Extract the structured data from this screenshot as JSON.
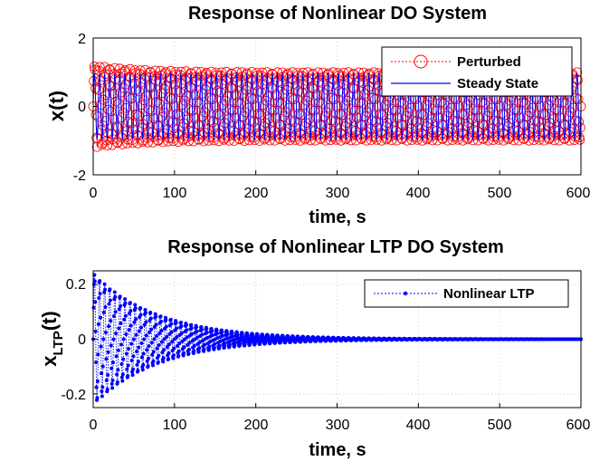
{
  "chart_data": [
    {
      "type": "line",
      "title": "Response of Nonlinear DO System",
      "xlabel": "time, s",
      "ylabel": "x(t)",
      "xlim": [
        0,
        600
      ],
      "ylim": [
        -2,
        2
      ],
      "xticks": [
        "0",
        "100",
        "200",
        "300",
        "400",
        "500",
        "600"
      ],
      "yticks": [
        "2",
        "0",
        "-2"
      ],
      "grid": true,
      "legend_position": "top-right",
      "series": [
        {
          "name": "Perturbed",
          "color": "#ff0000",
          "style": "dotted line with circle markers",
          "description_values": {
            "amplitude": 1.0,
            "initial_amplitude": 1.2,
            "oscillations_count": 96,
            "x_start": 0,
            "x_end": 600
          }
        },
        {
          "name": "Steady State",
          "color": "#0000ff",
          "style": "solid line",
          "description_values": {
            "amplitude": 0.95,
            "oscillations_count": 96,
            "x_start": 0,
            "x_end": 600
          }
        }
      ]
    },
    {
      "type": "line",
      "title": "Response of Nonlinear LTP DO System",
      "xlabel": "time, s",
      "ylabel_main": "x",
      "ylabel_sub": "LTP",
      "ylabel_suffix": "(t)",
      "xlim": [
        0,
        600
      ],
      "ylim": [
        -0.25,
        0.25
      ],
      "xticks": [
        "0",
        "100",
        "200",
        "300",
        "400",
        "500",
        "600"
      ],
      "yticks": [
        "0.2",
        "0",
        "-0.2"
      ],
      "grid": true,
      "legend_position": "top-right",
      "series": [
        {
          "name": "Nonlinear LTP",
          "color": "#0000ff",
          "style": "dotted line with dot markers",
          "description_values": {
            "initial_amplitude": 0.24,
            "decay_time_constant_s": 80,
            "oscillations_count": 96,
            "x_start": 0,
            "x_end": 600
          }
        }
      ]
    }
  ]
}
